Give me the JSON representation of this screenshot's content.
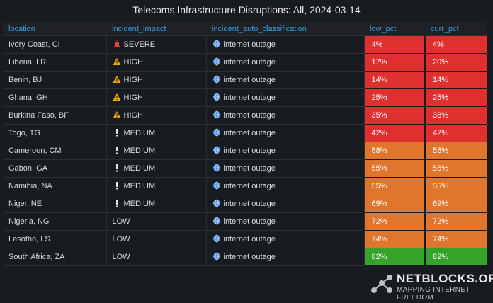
{
  "header": {
    "title": "Telecoms Infrastructure Disruptions: All, 2024-03-14"
  },
  "table": {
    "columns": [
      "location",
      "incident_impact",
      "incident_auto_classification",
      "low_pct",
      "curr_pct"
    ],
    "rows": [
      {
        "cells": [
          "Ivory Coast, CI",
          "SEVERE",
          "internet outage",
          "4%",
          "4%"
        ],
        "impact_icon": "siren",
        "colors": [
          "#e02f2f",
          "#e02f2f"
        ]
      },
      {
        "cells": [
          "Liberia, LR",
          "HIGH",
          "internet outage",
          "17%",
          "20%"
        ],
        "impact_icon": "warning",
        "colors": [
          "#e02f2f",
          "#e02f2f"
        ]
      },
      {
        "cells": [
          "Benin, BJ",
          "HIGH",
          "internet outage",
          "14%",
          "14%"
        ],
        "impact_icon": "warning",
        "colors": [
          "#e02f2f",
          "#e02f2f"
        ]
      },
      {
        "cells": [
          "Ghana, GH",
          "HIGH",
          "internet outage",
          "25%",
          "25%"
        ],
        "impact_icon": "warning",
        "colors": [
          "#e02f2f",
          "#e02f2f"
        ]
      },
      {
        "cells": [
          "Burkina Faso, BF",
          "HIGH",
          "internet outage",
          "35%",
          "38%"
        ],
        "impact_icon": "warning",
        "colors": [
          "#e02f2f",
          "#e02f2f"
        ]
      },
      {
        "cells": [
          "Togo, TG",
          "MEDIUM",
          "internet outage",
          "42%",
          "42%"
        ],
        "impact_icon": "exclamation",
        "colors": [
          "#e02f2f",
          "#e02f2f"
        ]
      },
      {
        "cells": [
          "Cameroon, CM",
          "MEDIUM",
          "internet outage",
          "58%",
          "58%"
        ],
        "impact_icon": "exclamation",
        "colors": [
          "#e0752d",
          "#e0752d"
        ]
      },
      {
        "cells": [
          "Gabon, GA",
          "MEDIUM",
          "internet outage",
          "55%",
          "55%"
        ],
        "impact_icon": "exclamation",
        "colors": [
          "#e0752d",
          "#e0752d"
        ]
      },
      {
        "cells": [
          "Namibia, NA",
          "MEDIUM",
          "internet outage",
          "55%",
          "55%"
        ],
        "impact_icon": "exclamation",
        "colors": [
          "#e0752d",
          "#e0752d"
        ]
      },
      {
        "cells": [
          "Niger, NE",
          "MEDIUM",
          "internet outage",
          "69%",
          "69%"
        ],
        "impact_icon": "exclamation",
        "colors": [
          "#e0752d",
          "#e0752d"
        ]
      },
      {
        "cells": [
          "Nigeria, NG",
          "LOW",
          "internet outage",
          "72%",
          "72%"
        ],
        "impact_icon": "none",
        "colors": [
          "#e0752d",
          "#e0752d"
        ]
      },
      {
        "cells": [
          "Lesotho, LS",
          "LOW",
          "internet outage",
          "74%",
          "74%"
        ],
        "impact_icon": "none",
        "colors": [
          "#e0752d",
          "#e0752d"
        ]
      },
      {
        "cells": [
          "South Africa, ZA",
          "LOW",
          "internet outage",
          "82%",
          "82%"
        ],
        "impact_icon": "none",
        "colors": [
          "#37a229",
          "#37a229"
        ]
      }
    ]
  },
  "logo": {
    "name": "NETBLOCKS.ORG",
    "tagline": "MAPPING INTERNET FREEDOM"
  }
}
